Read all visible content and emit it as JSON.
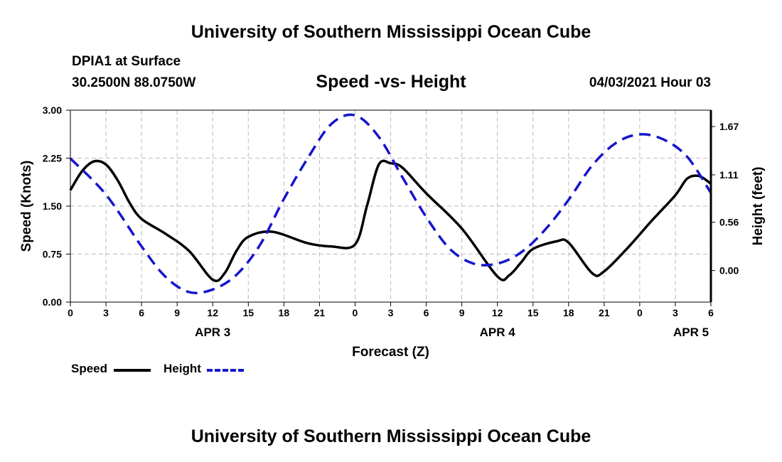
{
  "header": {
    "title": "University of Southern Mississippi Ocean Cube"
  },
  "footer": {
    "title": "University of Southern Mississippi Ocean Cube"
  },
  "info": {
    "station": "DPIA1 at Surface",
    "coordinates": "30.2500N  88.0750W",
    "chart_title": "Speed -vs- Height",
    "date": "04/03/2021 Hour 03"
  },
  "legend": {
    "speed": "Speed",
    "height": "Height"
  },
  "colors": {
    "speed": "#000000",
    "height": "#1515cc",
    "grid": "#bbbbbb"
  },
  "chart_data": {
    "type": "line",
    "title": "Speed -vs- Height",
    "xlabel": "Forecast (Z)",
    "ylabel": "Speed (Knots)",
    "y2label": "Height (feet)",
    "xlim": [
      0,
      54
    ],
    "ylim": [
      0,
      3
    ],
    "y2lim": [
      -0.366,
      1.86
    ],
    "x_ticks": [
      0,
      3,
      6,
      9,
      12,
      15,
      18,
      21,
      24,
      27,
      30,
      33,
      36,
      39,
      42,
      45,
      48,
      51,
      54
    ],
    "x_tick_labels": [
      "0",
      "3",
      "6",
      "9",
      "12",
      "15",
      "18",
      "21",
      "0",
      "3",
      "6",
      "9",
      "12",
      "15",
      "18",
      "21",
      "0",
      "3",
      "6"
    ],
    "date_labels": [
      {
        "x": 12,
        "label": "APR 3"
      },
      {
        "x": 36,
        "label": "APR 4"
      },
      {
        "x": 60,
        "label": "APR 5"
      }
    ],
    "y_ticks": [
      0,
      0.75,
      1.5,
      2.25,
      3
    ],
    "y_tick_labels": [
      "0.00",
      "0.75",
      "1.50",
      "2.25",
      "3.00"
    ],
    "y2_ticks": [
      0,
      0.56,
      1.11,
      1.67
    ],
    "y2_tick_labels": [
      "0.00",
      "0.56",
      "1.11",
      "1.67"
    ],
    "grid": true,
    "series": [
      {
        "name": "Speed",
        "axis": "left",
        "x": [
          0,
          1,
          2,
          3,
          4,
          5,
          6,
          8,
          10,
          12,
          13,
          14,
          15,
          17,
          20,
          22,
          24,
          25,
          26,
          27,
          28,
          30,
          33,
          36,
          37,
          38,
          39,
          41,
          42,
          44,
          45,
          47,
          49,
          51,
          52,
          53,
          54
        ],
        "values": [
          1.75,
          2.05,
          2.2,
          2.15,
          1.9,
          1.55,
          1.3,
          1.07,
          0.8,
          0.35,
          0.45,
          0.8,
          1.02,
          1.1,
          0.92,
          0.87,
          0.9,
          1.5,
          2.15,
          2.17,
          2.1,
          1.7,
          1.15,
          0.4,
          0.42,
          0.62,
          0.83,
          0.95,
          0.93,
          0.45,
          0.48,
          0.85,
          1.27,
          1.67,
          1.93,
          1.97,
          1.85
        ]
      },
      {
        "name": "Height",
        "axis": "right",
        "x": [
          0,
          3,
          6,
          8,
          10,
          12,
          14,
          16,
          18,
          20,
          22,
          24,
          26,
          28,
          30,
          32,
          34,
          36,
          38,
          40,
          42,
          44,
          46,
          48,
          50,
          52,
          54
        ],
        "values": [
          1.3,
          0.88,
          0.28,
          -0.07,
          -0.25,
          -0.22,
          -0.05,
          0.3,
          0.83,
          1.3,
          1.7,
          1.8,
          1.55,
          1.08,
          0.62,
          0.25,
          0.08,
          0.08,
          0.21,
          0.47,
          0.82,
          1.22,
          1.48,
          1.58,
          1.52,
          1.32,
          0.9
        ]
      }
    ]
  }
}
